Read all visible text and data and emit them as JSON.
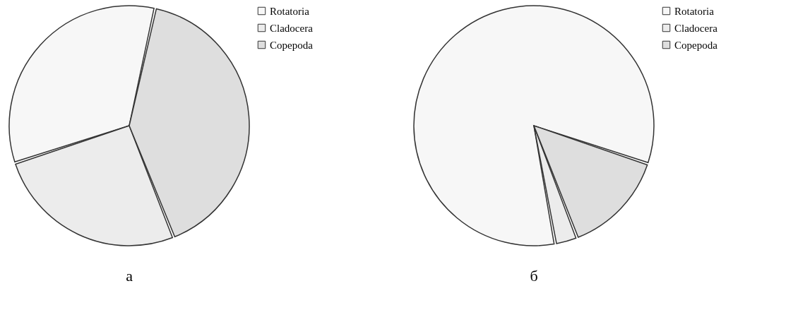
{
  "chart_data": [
    {
      "type": "pie",
      "title": "а",
      "categories": [
        "Rotatoria",
        "Cladocera",
        "Copepoda"
      ],
      "values": [
        33.5,
        26,
        40.5
      ],
      "colors": [
        "#f7f7f7",
        "#ececec",
        "#dedede"
      ],
      "legend": "top right"
    },
    {
      "type": "pie",
      "title": "б",
      "categories": [
        "Rotatoria",
        "Cladocera",
        "Copepoda"
      ],
      "values": [
        83,
        3,
        14
      ],
      "colors": [
        "#f7f7f7",
        "#ececec",
        "#dedede"
      ],
      "legend": "top right"
    }
  ]
}
